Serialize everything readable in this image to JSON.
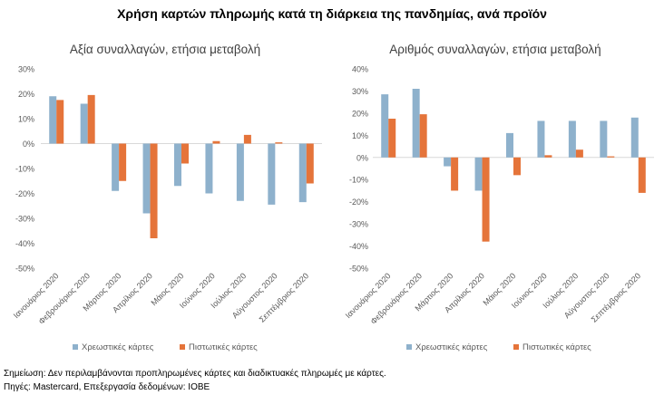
{
  "title": "Χρήση καρτών πληρωμής κατά τη διάρκεια της πανδημίας, ανά προϊόν",
  "colors": {
    "debit": "#8eb1cc",
    "credit": "#e5743a",
    "axis": "#d9d9d9",
    "text": "#595959"
  },
  "chart_data": [
    {
      "type": "bar",
      "title": "Αξία συναλλαγών, ετήσια μεταβολή",
      "categories": [
        "Ιανουάριος 2020",
        "Φεβρουάριος 2020",
        "Μάρτιος 2020",
        "Απρίλιος 2020",
        "Μάιος 2020",
        "Ιούνιος 2020",
        "Ιούλιος 2020",
        "Αύγουστος 2020",
        "Σεπτέμβριος 2020"
      ],
      "yticks": [
        "30%",
        "20%",
        "10%",
        "0%",
        "-10%",
        "-20%",
        "-30%",
        "-40%",
        "-50%"
      ],
      "ylim": [
        -50,
        30
      ],
      "grid": false,
      "legend": "bottom",
      "series": [
        {
          "name": "Χρεωστικές κάρτες",
          "values": [
            19,
            16,
            -19,
            -28,
            -17,
            -20,
            -23,
            -24.5,
            -23.5
          ]
        },
        {
          "name": "Πιστωτικές κάρτες",
          "values": [
            17.5,
            19.5,
            -15,
            -38,
            -8,
            1,
            3.5,
            0.5,
            -16
          ]
        }
      ]
    },
    {
      "type": "bar",
      "title": "Αριθμός συναλλαγών, ετήσια μεταβολή",
      "categories": [
        "Ιανουάριος 2020",
        "Φεβρουάριος 2020",
        "Μάρτιος 2020",
        "Απρίλιος 2020",
        "Μάιος 2020",
        "Ιούνιος 2020",
        "Ιούλιος 2020",
        "Αύγουστος 2020",
        "Σεπτέμβριος 2020"
      ],
      "yticks": [
        "40%",
        "30%",
        "20%",
        "10%",
        "0%",
        "-10%",
        "-20%",
        "-30%",
        "-40%",
        "-50%"
      ],
      "ylim": [
        -50,
        40
      ],
      "grid": false,
      "legend": "bottom",
      "series": [
        {
          "name": "Χρεωστικές κάρτες",
          "values": [
            28.5,
            31,
            -4,
            -15,
            11,
            16.5,
            16.5,
            16.5,
            18
          ]
        },
        {
          "name": "Πιστωτικές κάρτες",
          "values": [
            17.5,
            19.5,
            -15,
            -38,
            -8,
            1,
            3.5,
            0.5,
            -16
          ]
        }
      ]
    }
  ],
  "footnote": {
    "note": "Σημείωση: Δεν περιλαμβάνονται προπληρωμένες κάρτες και διαδικτυακές πληρωμές με κάρτες.",
    "source": "Πηγές: Mastercard, Επεξεργασία δεδομένων: ΙΟΒΕ"
  }
}
